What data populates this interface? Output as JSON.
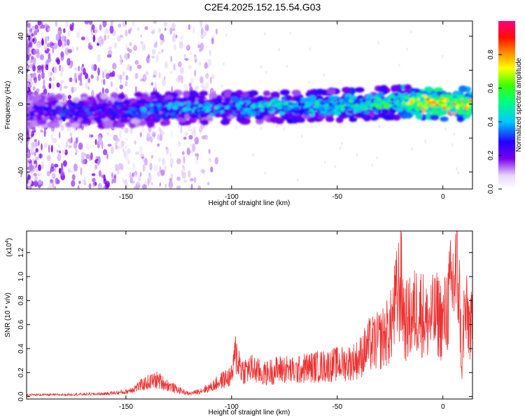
{
  "title": "C2E4.2025.152.15.54.G03",
  "colors": {
    "snr_line": "#ee3030",
    "spectrogram_low": "#f2e6fb",
    "spectrogram_mid": "#5500ee",
    "spectrogram_high": "#ee1060"
  },
  "chart_data": [
    {
      "type": "heatmap",
      "title": "C2E4.2025.152.15.54.G03",
      "xlabel": "Height of straight line (km)",
      "ylabel": "Frequency (Hz)",
      "xlim": [
        -197,
        14
      ],
      "ylim": [
        -50,
        49
      ],
      "xticks": [
        -150,
        -100,
        -50,
        0
      ],
      "yticks": [
        -40,
        -20,
        0,
        20,
        40
      ],
      "grid": false,
      "colorbar": {
        "label": "Normalized spectral amplitude",
        "range": [
          0.0,
          1.0
        ],
        "ticks": [
          0.0,
          0.2,
          0.4,
          0.6,
          0.8
        ],
        "tick_labels": [
          "0.0",
          "0.2",
          "0.4",
          "0.6",
          "0.8"
        ],
        "colormap": "rainbow (white–purple–blue–cyan–green–yellow–red–pink)"
      },
      "ridge": {
        "description": "dominant signal band near 0 Hz, amplitude increasing toward 0 km",
        "height_km": [
          -195,
          -180,
          -160,
          -140,
          -120,
          -100,
          -80,
          -60,
          -40,
          -20,
          -10,
          0,
          10
        ],
        "frequency_hz": [
          -4,
          -4,
          -4,
          -3,
          -2,
          -2,
          -1,
          -1,
          0,
          1,
          1,
          0,
          0
        ],
        "amplitude": [
          0.25,
          0.3,
          0.3,
          0.35,
          0.4,
          0.4,
          0.45,
          0.45,
          0.5,
          0.55,
          0.8,
          0.9,
          0.75
        ]
      }
    },
    {
      "type": "line",
      "title": "",
      "xlabel": "Height of straight line (km)",
      "ylabel": "SNR (10 * v/v)",
      "y_scale_label": "(x10",
      "y_scale_exponent": "4",
      "y_scale_close": ")",
      "xlim": [
        -197,
        14
      ],
      "ylim": [
        -0.02,
        1.38
      ],
      "xticks": [
        -150,
        -100,
        -50,
        0
      ],
      "yticks": [
        0.0,
        0.2,
        0.4,
        0.6,
        0.8,
        1.0,
        1.2
      ],
      "ytick_labels": [
        "0.0",
        "0.2",
        "0.4",
        "0.6",
        "0.8",
        "1.0",
        "1.2"
      ],
      "grid": false,
      "series": [
        {
          "x": [
            -197,
            -180,
            -160,
            -150,
            -145,
            -140,
            -135,
            -130,
            -125,
            -120,
            -115,
            -110,
            -105,
            -100,
            -98,
            -95,
            -90,
            -85,
            -80,
            -75,
            -70,
            -65,
            -60,
            -55,
            -50,
            -45,
            -40,
            -35,
            -30,
            -25,
            -20,
            -18,
            -15,
            -12,
            -10,
            -8,
            -5,
            -2,
            0,
            3,
            5,
            7,
            8,
            9,
            10,
            12,
            14
          ],
          "y": [
            0.02,
            0.02,
            0.03,
            0.05,
            0.1,
            0.15,
            0.18,
            0.12,
            0.07,
            0.03,
            0.06,
            0.1,
            0.17,
            0.22,
            0.47,
            0.28,
            0.3,
            0.24,
            0.28,
            0.3,
            0.27,
            0.31,
            0.32,
            0.33,
            0.35,
            0.36,
            0.4,
            0.55,
            0.6,
            0.72,
            1.24,
            0.8,
            0.85,
            0.95,
            0.92,
            0.8,
            0.85,
            0.88,
            0.78,
            1.05,
            1.25,
            1.35,
            0.98,
            0.25,
            0.9,
            0.82,
            0.7
          ]
        }
      ]
    }
  ]
}
